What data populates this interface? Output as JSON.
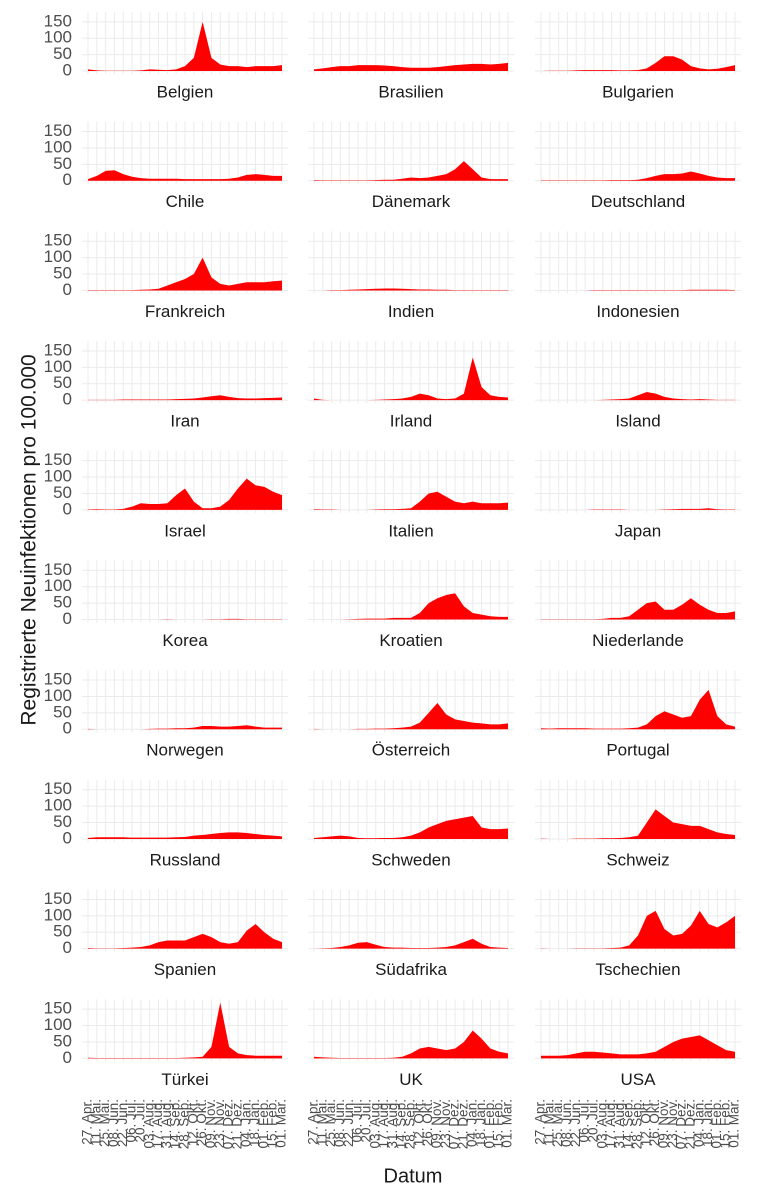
{
  "chart_data": {
    "type": "area",
    "xlabel": "Datum",
    "ylabel": "Registrierte Neuinfektionen pro 100.000",
    "categories": [
      "27. Apr.",
      "11. Mai.",
      "25. Mai.",
      "08. Jun.",
      "22. Jun.",
      "06. Jul.",
      "20. Jul.",
      "03. Aug.",
      "17. Aug.",
      "31. Aug.",
      "14. Sep.",
      "28. Sep.",
      "12. Okt.",
      "26. Okt.",
      "09. Nov.",
      "23. Nov.",
      "07. Dez.",
      "21. Dez.",
      "04. Jan.",
      "18. Jan.",
      "01. Feb.",
      "15. Feb.",
      "01. Mar."
    ],
    "ylim": [
      -9,
      180
    ],
    "yticks": [
      0,
      50,
      100,
      150
    ],
    "grid": true,
    "series": [
      {
        "name": "Belgien",
        "color": "#ff0000",
        "values": [
          5,
          2,
          1,
          1,
          1,
          1,
          2,
          5,
          4,
          3,
          5,
          15,
          40,
          150,
          40,
          20,
          15,
          15,
          12,
          15,
          15,
          15,
          18
        ]
      },
      {
        "name": "Brasilien",
        "color": "#ff0000",
        "values": [
          5,
          8,
          12,
          15,
          15,
          18,
          18,
          18,
          17,
          15,
          12,
          10,
          10,
          10,
          12,
          15,
          18,
          20,
          22,
          22,
          20,
          22,
          25
        ]
      },
      {
        "name": "Bulgarien",
        "color": "#ff0000",
        "values": [
          0,
          1,
          1,
          1,
          2,
          3,
          3,
          3,
          3,
          2,
          2,
          3,
          8,
          25,
          45,
          45,
          35,
          15,
          8,
          5,
          7,
          12,
          18
        ]
      },
      {
        "name": "Chile",
        "color": "#ff0000",
        "values": [
          5,
          15,
          30,
          32,
          20,
          12,
          8,
          6,
          6,
          6,
          6,
          5,
          5,
          5,
          5,
          5,
          6,
          10,
          18,
          20,
          18,
          15,
          15
        ]
      },
      {
        "name": "Dänemark",
        "color": "#ff0000",
        "values": [
          2,
          1,
          1,
          1,
          1,
          1,
          1,
          2,
          3,
          3,
          6,
          10,
          8,
          10,
          15,
          20,
          35,
          60,
          35,
          10,
          5,
          5,
          5
        ]
      },
      {
        "name": "Deutschland",
        "color": "#ff0000",
        "values": [
          1,
          1,
          1,
          1,
          1,
          1,
          1,
          1,
          2,
          2,
          2,
          3,
          8,
          15,
          20,
          20,
          22,
          28,
          22,
          15,
          10,
          8,
          8
        ]
      },
      {
        "name": "Frankreich",
        "color": "#ff0000",
        "values": [
          1,
          1,
          1,
          1,
          1,
          1,
          2,
          3,
          5,
          15,
          25,
          35,
          50,
          100,
          40,
          20,
          15,
          20,
          25,
          25,
          25,
          28,
          30
        ]
      },
      {
        "name": "Indien",
        "color": "#ff0000",
        "values": [
          0,
          0,
          1,
          1,
          2,
          3,
          4,
          5,
          6,
          6,
          5,
          4,
          3,
          3,
          2,
          2,
          1,
          1,
          1,
          1,
          1,
          1,
          1
        ]
      },
      {
        "name": "Indonesien",
        "color": "#ff0000",
        "values": [
          0,
          0,
          0,
          0,
          0,
          0,
          1,
          1,
          1,
          1,
          1,
          1,
          1,
          1,
          1,
          1,
          1,
          2,
          2,
          2,
          2,
          2,
          1
        ]
      },
      {
        "name": "Iran",
        "color": "#ff0000",
        "values": [
          1,
          1,
          1,
          1,
          2,
          2,
          2,
          2,
          2,
          2,
          3,
          4,
          5,
          8,
          12,
          15,
          10,
          6,
          5,
          5,
          6,
          7,
          8
        ]
      },
      {
        "name": "Irland",
        "color": "#ff0000",
        "values": [
          5,
          1,
          0,
          0,
          0,
          0,
          0,
          1,
          2,
          3,
          5,
          10,
          20,
          15,
          5,
          3,
          5,
          20,
          130,
          40,
          15,
          10,
          8
        ]
      },
      {
        "name": "Island",
        "color": "#ff0000",
        "values": [
          0,
          0,
          0,
          0,
          0,
          0,
          0,
          1,
          2,
          3,
          5,
          15,
          25,
          20,
          10,
          5,
          3,
          2,
          3,
          2,
          1,
          1,
          1
        ]
      },
      {
        "name": "Israel",
        "color": "#ff0000",
        "values": [
          1,
          2,
          1,
          1,
          3,
          10,
          20,
          18,
          18,
          20,
          45,
          65,
          25,
          5,
          5,
          10,
          30,
          65,
          95,
          75,
          70,
          55,
          45
        ]
      },
      {
        "name": "Italien",
        "color": "#ff0000",
        "values": [
          2,
          1,
          1,
          0,
          0,
          0,
          0,
          1,
          2,
          2,
          3,
          5,
          25,
          50,
          55,
          40,
          25,
          20,
          25,
          20,
          20,
          20,
          22
        ]
      },
      {
        "name": "Japan",
        "color": "#ff0000",
        "values": [
          0,
          0,
          0,
          0,
          0,
          0,
          1,
          1,
          1,
          1,
          0,
          0,
          0,
          0,
          1,
          2,
          3,
          3,
          3,
          5,
          2,
          1,
          1
        ]
      },
      {
        "name": "Korea",
        "color": "#ff0000",
        "values": [
          0,
          0,
          0,
          0,
          0,
          0,
          0,
          0,
          0,
          1,
          0,
          0,
          0,
          0,
          1,
          1,
          2,
          2,
          1,
          1,
          1,
          1,
          1
        ]
      },
      {
        "name": "Kroatien",
        "color": "#ff0000",
        "values": [
          0,
          0,
          0,
          0,
          1,
          2,
          3,
          3,
          3,
          5,
          5,
          5,
          20,
          50,
          65,
          75,
          80,
          40,
          20,
          15,
          10,
          8,
          8
        ]
      },
      {
        "name": "Niederlande",
        "color": "#ff0000",
        "values": [
          1,
          1,
          1,
          1,
          1,
          1,
          1,
          2,
          5,
          5,
          10,
          30,
          50,
          55,
          30,
          30,
          45,
          65,
          45,
          30,
          20,
          20,
          25
        ]
      },
      {
        "name": "Norwegen",
        "color": "#ff0000",
        "values": [
          1,
          0,
          0,
          0,
          0,
          0,
          0,
          1,
          2,
          2,
          3,
          3,
          5,
          10,
          10,
          8,
          8,
          10,
          12,
          8,
          5,
          5,
          5
        ]
      },
      {
        "name": "Österreich",
        "color": "#ff0000",
        "values": [
          1,
          0,
          0,
          0,
          0,
          1,
          1,
          2,
          2,
          3,
          5,
          8,
          20,
          50,
          80,
          45,
          30,
          25,
          20,
          18,
          15,
          15,
          18
        ]
      },
      {
        "name": "Portugal",
        "color": "#ff0000",
        "values": [
          3,
          2,
          3,
          3,
          3,
          3,
          2,
          2,
          2,
          2,
          3,
          5,
          15,
          40,
          55,
          45,
          35,
          40,
          90,
          120,
          40,
          15,
          8
        ]
      },
      {
        "name": "Russland",
        "color": "#ff0000",
        "values": [
          3,
          5,
          5,
          5,
          5,
          4,
          4,
          4,
          4,
          4,
          5,
          6,
          10,
          12,
          15,
          18,
          20,
          20,
          18,
          15,
          12,
          10,
          8
        ]
      },
      {
        "name": "Schweden",
        "color": "#ff0000",
        "values": [
          3,
          5,
          8,
          10,
          8,
          3,
          2,
          2,
          3,
          3,
          5,
          10,
          20,
          35,
          45,
          55,
          60,
          65,
          70,
          35,
          30,
          30,
          32
        ]
      },
      {
        "name": "Schweiz",
        "color": "#ff0000",
        "values": [
          1,
          0,
          0,
          0,
          1,
          1,
          1,
          2,
          2,
          3,
          5,
          10,
          50,
          90,
          70,
          50,
          45,
          40,
          40,
          30,
          20,
          15,
          12
        ]
      },
      {
        "name": "Spanien",
        "color": "#ff0000",
        "values": [
          2,
          1,
          1,
          1,
          2,
          3,
          5,
          10,
          20,
          25,
          25,
          25,
          35,
          45,
          35,
          20,
          15,
          20,
          55,
          75,
          50,
          30,
          20
        ]
      },
      {
        "name": "Südafrika",
        "color": "#ff0000",
        "values": [
          0,
          1,
          2,
          5,
          10,
          18,
          20,
          12,
          5,
          3,
          3,
          2,
          2,
          2,
          3,
          5,
          10,
          20,
          30,
          15,
          5,
          3,
          2
        ]
      },
      {
        "name": "Tschechien",
        "color": "#ff0000",
        "values": [
          1,
          0,
          0,
          0,
          1,
          1,
          1,
          1,
          2,
          3,
          10,
          40,
          100,
          115,
          60,
          40,
          45,
          70,
          115,
          75,
          65,
          80,
          100
        ]
      },
      {
        "name": "Türkei",
        "color": "#ff0000",
        "values": [
          2,
          1,
          1,
          1,
          1,
          1,
          1,
          1,
          1,
          1,
          1,
          2,
          3,
          5,
          35,
          170,
          35,
          15,
          10,
          8,
          8,
          8,
          8
        ]
      },
      {
        "name": "UK",
        "color": "#ff0000",
        "values": [
          5,
          3,
          2,
          1,
          1,
          1,
          1,
          1,
          1,
          2,
          5,
          15,
          30,
          35,
          30,
          25,
          30,
          50,
          85,
          60,
          30,
          20,
          15
        ]
      },
      {
        "name": "USA",
        "color": "#ff0000",
        "values": [
          8,
          8,
          8,
          10,
          15,
          20,
          20,
          18,
          15,
          12,
          12,
          12,
          15,
          20,
          35,
          50,
          60,
          65,
          70,
          55,
          40,
          25,
          20
        ]
      }
    ]
  }
}
